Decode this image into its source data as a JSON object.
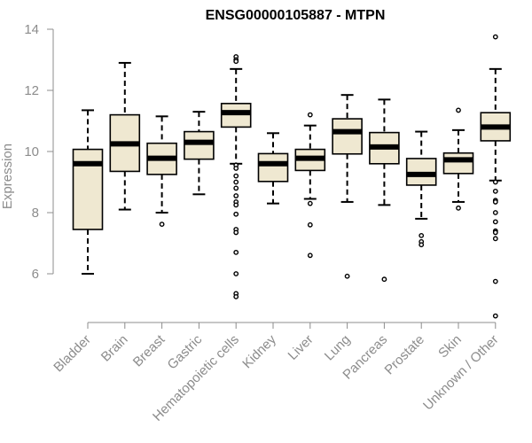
{
  "chart_data": {
    "type": "box",
    "title": "ENSG00000105887 - MTPN",
    "xlabel": "",
    "ylabel": "Expression",
    "ylim": [
      4.4,
      14.1
    ],
    "yticks": [
      6,
      8,
      10,
      12,
      14
    ],
    "box_fill": "#efe8d1",
    "box_stroke": "#000000",
    "axis_color": "#8c8c8c",
    "categories": [
      "Bladder",
      "Brain",
      "Breast",
      "Gastric",
      "Hematopoietic cells",
      "Kidney",
      "Liver",
      "Lung",
      "Pancreas",
      "Prostate",
      "Skin",
      "Unknown / Other"
    ],
    "boxes": [
      {
        "whisker_low": 6.0,
        "q1": 7.45,
        "median": 9.6,
        "q3": 10.07,
        "whisker_high": 11.35,
        "outliers": []
      },
      {
        "whisker_low": 8.1,
        "q1": 9.35,
        "median": 10.25,
        "q3": 11.2,
        "whisker_high": 12.9,
        "outliers": []
      },
      {
        "whisker_low": 8.0,
        "q1": 9.25,
        "median": 9.78,
        "q3": 10.27,
        "whisker_high": 11.15,
        "outliers": [
          7.62
        ]
      },
      {
        "whisker_low": 8.6,
        "q1": 9.75,
        "median": 10.3,
        "q3": 10.65,
        "whisker_high": 11.3,
        "outliers": []
      },
      {
        "whisker_low": 9.6,
        "q1": 10.8,
        "median": 11.27,
        "q3": 11.57,
        "whisker_high": 12.7,
        "outliers": [
          13.1,
          13.0,
          12.95,
          9.55,
          9.45,
          9.2,
          9.0,
          8.8,
          8.55,
          8.35,
          8.25,
          7.95,
          7.45,
          7.35,
          6.7,
          6.0,
          5.35,
          5.25
        ]
      },
      {
        "whisker_low": 8.3,
        "q1": 9.02,
        "median": 9.6,
        "q3": 9.93,
        "whisker_high": 10.6,
        "outliers": []
      },
      {
        "whisker_low": 8.45,
        "q1": 9.38,
        "median": 9.78,
        "q3": 10.07,
        "whisker_high": 10.85,
        "outliers": [
          11.2,
          8.3,
          7.6,
          6.6
        ]
      },
      {
        "whisker_low": 8.35,
        "q1": 9.92,
        "median": 10.65,
        "q3": 11.07,
        "whisker_high": 11.85,
        "outliers": [
          5.92
        ]
      },
      {
        "whisker_low": 8.25,
        "q1": 9.6,
        "median": 10.15,
        "q3": 10.62,
        "whisker_high": 11.7,
        "outliers": [
          5.82
        ]
      },
      {
        "whisker_low": 7.8,
        "q1": 8.9,
        "median": 9.25,
        "q3": 9.77,
        "whisker_high": 10.65,
        "outliers": [
          7.25,
          7.05,
          6.95
        ]
      },
      {
        "whisker_low": 8.35,
        "q1": 9.28,
        "median": 9.73,
        "q3": 9.95,
        "whisker_high": 10.7,
        "outliers": [
          11.35,
          8.15
        ]
      },
      {
        "whisker_low": 9.05,
        "q1": 10.35,
        "median": 10.8,
        "q3": 11.27,
        "whisker_high": 12.7,
        "outliers": [
          13.75,
          9.0,
          8.7,
          8.4,
          8.35,
          8.0,
          7.7,
          7.4,
          7.35,
          7.15,
          5.75,
          4.62
        ]
      }
    ]
  }
}
